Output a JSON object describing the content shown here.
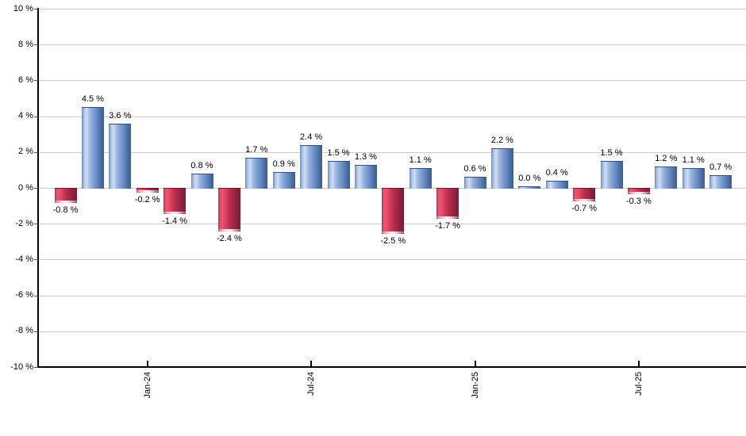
{
  "chart_data": {
    "type": "bar",
    "title": "",
    "xlabel": "",
    "ylabel": "",
    "unit": "%",
    "ylim": [
      -10,
      10
    ],
    "y_tick_step": 2,
    "grid": true,
    "y_tick_labels": [
      "10 %",
      "8 %",
      "6 %",
      "4 %",
      "2 %",
      "0 %",
      "-2 %",
      "-4 %",
      "-6 %",
      "-8 %",
      "-10 %"
    ],
    "x_ticks": [
      {
        "bar_index": 3,
        "label": "Jan-24"
      },
      {
        "bar_index": 9,
        "label": "Jul-24"
      },
      {
        "bar_index": 15,
        "label": "Jan-25"
      },
      {
        "bar_index": 21,
        "label": "Jul-25"
      }
    ],
    "bars": [
      {
        "value": -0.8,
        "label": "-0.8 %"
      },
      {
        "value": 4.5,
        "label": "4.5 %"
      },
      {
        "value": 3.6,
        "label": "3.6 %"
      },
      {
        "value": -0.2,
        "label": "-0.2 %"
      },
      {
        "value": -1.4,
        "label": "-1.4 %"
      },
      {
        "value": 0.8,
        "label": "0.8 %"
      },
      {
        "value": -2.4,
        "label": "-2.4 %"
      },
      {
        "value": 1.7,
        "label": "1.7 %"
      },
      {
        "value": 0.9,
        "label": "0.9 %"
      },
      {
        "value": 2.4,
        "label": "2.4 %"
      },
      {
        "value": 1.5,
        "label": "1.5 %"
      },
      {
        "value": 1.3,
        "label": "1.3 %"
      },
      {
        "value": -2.5,
        "label": "-2.5 %"
      },
      {
        "value": 1.1,
        "label": "1.1 %"
      },
      {
        "value": -1.7,
        "label": "-1.7 %"
      },
      {
        "value": 0.6,
        "label": "0.6 %"
      },
      {
        "value": 2.2,
        "label": "2.2 %"
      },
      {
        "value": 0.0,
        "label": "0.0 %"
      },
      {
        "value": 0.4,
        "label": "0.4 %"
      },
      {
        "value": -0.7,
        "label": "-0.7 %"
      },
      {
        "value": 1.5,
        "label": "1.5 %"
      },
      {
        "value": -0.3,
        "label": "-0.3 %"
      },
      {
        "value": 1.2,
        "label": "1.2 %"
      },
      {
        "value": 1.1,
        "label": "1.1 %"
      },
      {
        "value": 0.7,
        "label": "0.7 %"
      }
    ],
    "colors": {
      "positive_bar": "#7295cb",
      "positive_bar_highlight": "#cfdef4",
      "positive_bar_dark": "#3f5e8f",
      "negative_bar": "#c6395a",
      "negative_bar_highlight": "#ef4d67",
      "negative_bar_dark": "#7d1c37",
      "gridline": "#cccccc",
      "axis": "#000000",
      "text": "#000000",
      "background": "#ffffff"
    },
    "legend": null
  }
}
